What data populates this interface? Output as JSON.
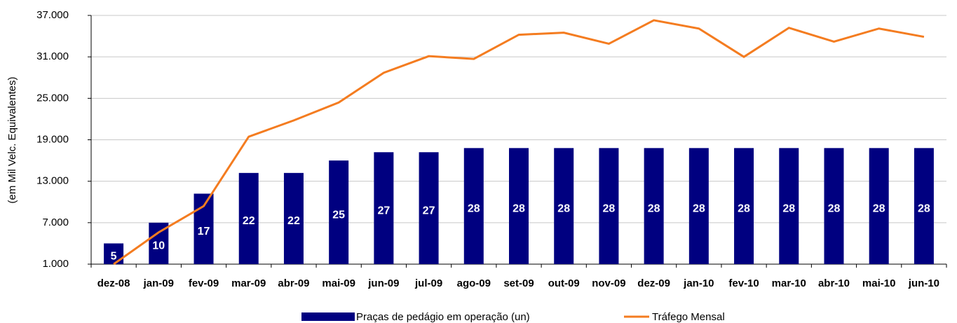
{
  "chart_data": {
    "type": "bar+line",
    "y_axis_label": "(em Mil Velc. Equivalentes)",
    "categories": [
      "dez-08",
      "jan-09",
      "fev-09",
      "mar-09",
      "abr-09",
      "mai-09",
      "jun-09",
      "jul-09",
      "ago-09",
      "set-09",
      "out-09",
      "nov-09",
      "dez-09",
      "jan-10",
      "fev-10",
      "mar-10",
      "abr-10",
      "mai-10",
      "jun-10"
    ],
    "series": [
      {
        "name": "Praças de pedágio em operação (un)",
        "type": "bar",
        "axis": "y2",
        "color": "#000080",
        "values": [
          5,
          10,
          17,
          22,
          22,
          25,
          27,
          27,
          28,
          28,
          28,
          28,
          28,
          28,
          28,
          28,
          28,
          28,
          28
        ]
      },
      {
        "name": "Tráfego Mensal",
        "type": "line",
        "color": "#f47c20",
        "values": [
          1000,
          5600,
          9400,
          19450,
          21800,
          24400,
          28700,
          31100,
          30700,
          34200,
          34500,
          32900,
          36300,
          35100,
          31000,
          35200,
          33200,
          35100,
          33900
        ]
      }
    ],
    "ylim": [
      1000,
      37000
    ],
    "yticks": [
      {
        "value": 1000,
        "label": "1.000"
      },
      {
        "value": 7000,
        "label": "7.000"
      },
      {
        "value": 13000,
        "label": "13.000"
      },
      {
        "value": 19000,
        "label": "19.000"
      },
      {
        "value": 25000,
        "label": "25.000"
      },
      {
        "value": 31000,
        "label": "31.000"
      },
      {
        "value": 37000,
        "label": "37.000"
      }
    ],
    "y2lim": [
      0,
      60
    ],
    "grid": true,
    "legend": "bottom"
  }
}
